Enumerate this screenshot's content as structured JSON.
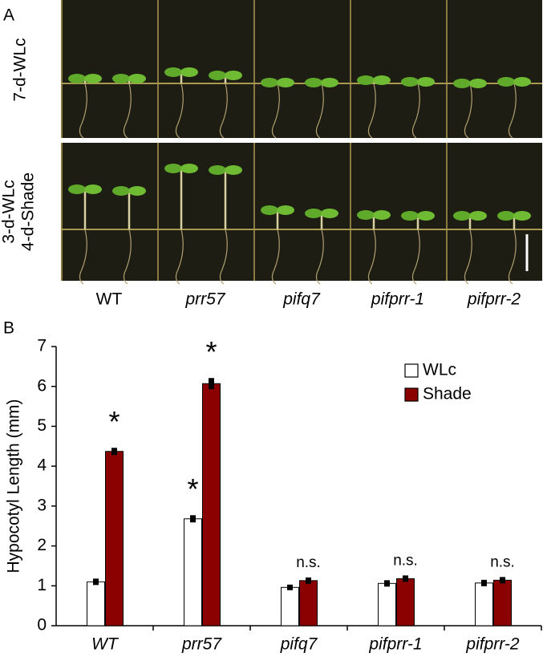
{
  "panel_a": {
    "label": "A",
    "rows": [
      [
        "7-d-WLc"
      ],
      [
        "3-d-WLc",
        "4-d-Shade"
      ]
    ],
    "genotypes": [
      "WT",
      "prr57",
      "pifq7",
      "pifprr-1",
      "pifprr-2"
    ]
  },
  "chart_data": {
    "type": "bar",
    "panel_label": "B",
    "ylabel": "Hypocotyl Length (mm)",
    "categories": [
      "WT",
      "prr57",
      "pifq7",
      "pifprr-1",
      "pifprr-2"
    ],
    "series": [
      {
        "name": "WLc",
        "color": "#ffffff",
        "values": [
          1.1,
          2.68,
          0.96,
          1.06,
          1.07
        ],
        "errors": [
          0.04,
          0.05,
          0.03,
          0.04,
          0.04
        ],
        "annotations": [
          null,
          "*",
          null,
          null,
          null
        ]
      },
      {
        "name": "Shade",
        "color": "#8b0000",
        "values": [
          4.37,
          6.07,
          1.13,
          1.18,
          1.14
        ],
        "errors": [
          0.05,
          0.1,
          0.04,
          0.04,
          0.04
        ],
        "annotations": [
          "*",
          "*",
          "n.s.",
          "n.s.",
          "n.s."
        ]
      }
    ],
    "ylim": [
      0,
      7
    ],
    "yticks": [
      0,
      1,
      2,
      3,
      4,
      5,
      6,
      7
    ],
    "legend": "upper right"
  }
}
